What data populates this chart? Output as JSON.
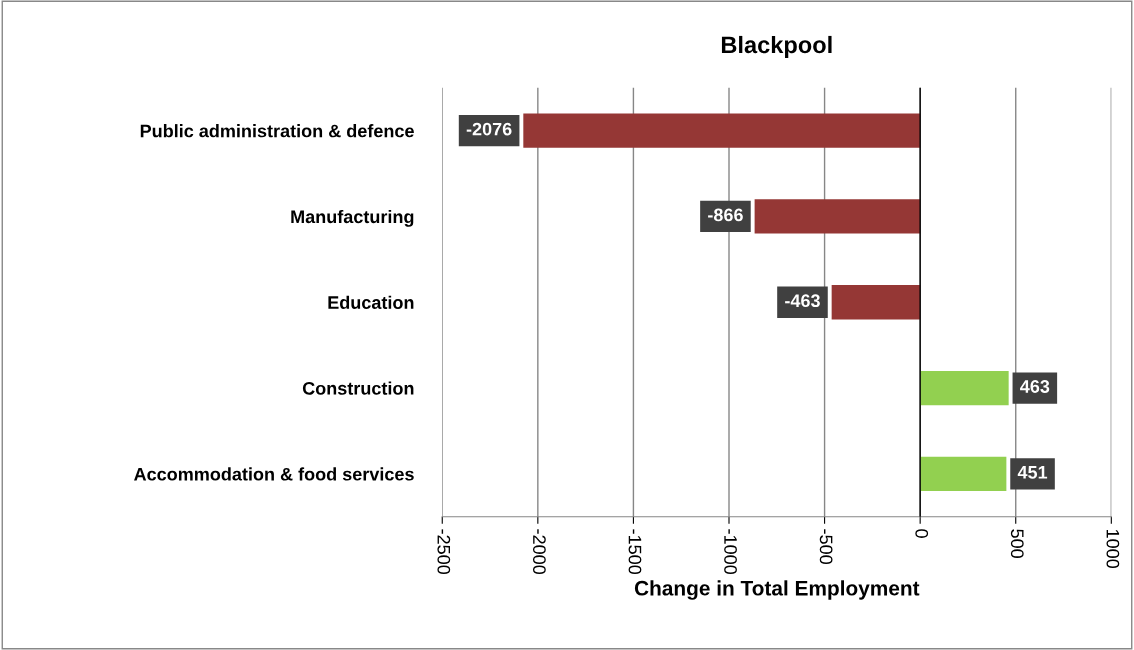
{
  "chart_data": {
    "type": "bar",
    "orientation": "horizontal",
    "title": "Blackpool",
    "xlabel": "Change in Total Employment",
    "categories": [
      "Public administration & defence",
      "Manufacturing",
      "Education",
      "Construction",
      "Accommodation & food services"
    ],
    "values": [
      -2076,
      -866,
      -463,
      463,
      451
    ],
    "colors": [
      "#953735",
      "#953735",
      "#953735",
      "#92d050",
      "#92d050"
    ],
    "xlim": [
      -2500,
      1000
    ],
    "xticks": [
      -2500,
      -2000,
      -1500,
      -1000,
      -500,
      0,
      500,
      1000
    ],
    "grid": "x",
    "data_labels": true,
    "legend": false
  }
}
